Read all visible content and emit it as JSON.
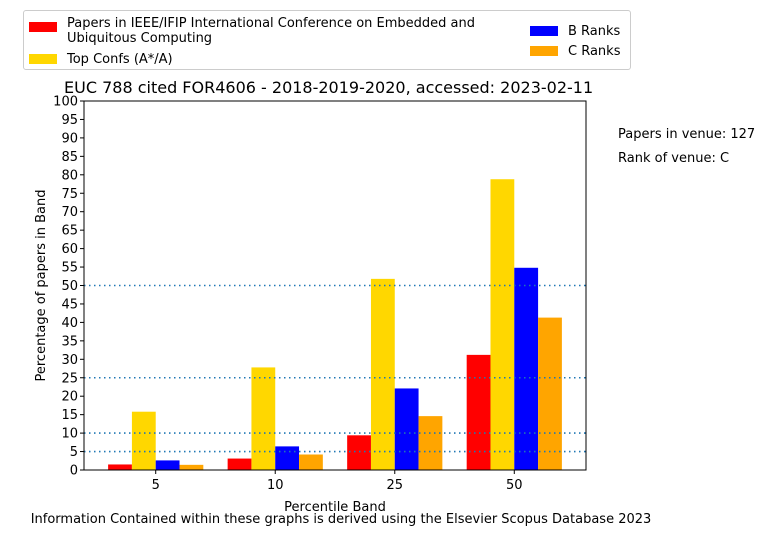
{
  "chart_data": {
    "type": "bar",
    "title": "EUC 788 cited FOR4606 - 2018-2019-2020, accessed: 2023-02-11",
    "xlabel": "Percentile Band",
    "ylabel": "Percentage of papers in Band",
    "categories": [
      "5",
      "10",
      "25",
      "50"
    ],
    "ylim": [
      0,
      100
    ],
    "yticks": [
      0,
      5,
      10,
      15,
      20,
      25,
      30,
      35,
      40,
      45,
      50,
      55,
      60,
      65,
      70,
      75,
      80,
      85,
      90,
      95,
      100
    ],
    "reference_lines": [
      5,
      10,
      25,
      50
    ],
    "legend_position": "top",
    "series": [
      {
        "name": "Papers in IEEE/IFIP International Conference on Embedded and Ubiquitous Computing",
        "color": "#ff0000",
        "values": [
          1.5,
          3.1,
          9.4,
          31.2
        ]
      },
      {
        "name": "Top Confs (A*/A)",
        "color": "#ffd700",
        "values": [
          15.8,
          27.8,
          51.8,
          78.8
        ]
      },
      {
        "name": "B Ranks",
        "color": "#0000ff",
        "values": [
          2.6,
          6.4,
          22.1,
          54.8
        ]
      },
      {
        "name": "C Ranks",
        "color": "#ffa500",
        "values": [
          1.4,
          4.2,
          14.6,
          41.3
        ]
      }
    ]
  },
  "notes": {
    "papers_in_venue": "Papers in venue: 127",
    "rank_of_venue": "Rank of venue: C"
  },
  "footer": "Information Contained within these graphs is derived using the Elsevier Scopus Database 2023"
}
